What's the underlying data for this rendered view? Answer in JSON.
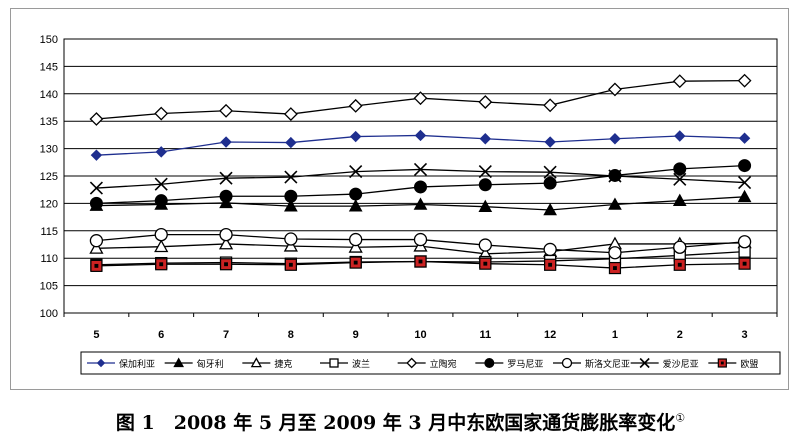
{
  "caption": {
    "text": "图 1　2008 年 5 月至 2009 年 3 月中东欧国家通货膨胀率变化",
    "footnote_mark": "①"
  },
  "chart_data": {
    "type": "line",
    "title": "",
    "xlabel": "",
    "ylabel": "",
    "categories": [
      "5",
      "6",
      "7",
      "8",
      "9",
      "10",
      "11",
      "12",
      "1",
      "2",
      "3"
    ],
    "ylim": [
      100,
      150
    ],
    "yticks": [
      100,
      105,
      110,
      115,
      120,
      125,
      130,
      135,
      140,
      145,
      150
    ],
    "grid": "horizontal",
    "legend_position": "bottom",
    "series": [
      {
        "name": "保加利亚",
        "color": "#1f2f8f",
        "marker": "diamond-filled",
        "values": [
          128.8,
          129.4,
          131.2,
          131.1,
          132.2,
          132.4,
          131.8,
          131.2,
          131.8,
          132.3,
          131.9
        ]
      },
      {
        "name": "匈牙利",
        "color": "#000000",
        "marker": "triangle-filled",
        "values": [
          119.6,
          119.8,
          120.1,
          119.5,
          119.5,
          119.8,
          119.4,
          118.8,
          119.8,
          120.5,
          121.2
        ]
      },
      {
        "name": "捷克",
        "color": "#000000",
        "marker": "triangle-open",
        "values": [
          111.8,
          112.1,
          112.6,
          112.2,
          112.0,
          112.2,
          110.8,
          111.2,
          112.6,
          112.6,
          112.8
        ]
      },
      {
        "name": "波兰",
        "color": "#000000",
        "marker": "square-open",
        "values": [
          108.8,
          109.1,
          109.2,
          109.0,
          109.3,
          109.4,
          109.3,
          109.5,
          109.9,
          110.5,
          111.2
        ]
      },
      {
        "name": "立陶宛",
        "color": "#000000",
        "marker": "diamond-open",
        "values": [
          135.4,
          136.4,
          136.9,
          136.3,
          137.8,
          139.2,
          138.5,
          137.9,
          140.8,
          142.3,
          142.4
        ]
      },
      {
        "name": "罗马尼亚",
        "color": "#000000",
        "marker": "circle-filled",
        "values": [
          120.0,
          120.5,
          121.3,
          121.3,
          121.7,
          123.0,
          123.4,
          123.7,
          125.1,
          126.3,
          126.9
        ]
      },
      {
        "name": "斯洛文尼亚",
        "color": "#000000",
        "marker": "circle-open",
        "values": [
          113.2,
          114.3,
          114.3,
          113.5,
          113.4,
          113.4,
          112.4,
          111.6,
          111.0,
          112.0,
          113.0
        ]
      },
      {
        "name": "爱沙尼亚",
        "color": "#000000",
        "marker": "x",
        "values": [
          122.8,
          123.5,
          124.6,
          124.8,
          125.8,
          126.2,
          125.8,
          125.7,
          125.0,
          124.4,
          123.8
        ]
      },
      {
        "name": "欧盟",
        "color": "#cc2222",
        "marker": "square-filled-red",
        "values": [
          108.6,
          108.9,
          108.9,
          108.8,
          109.2,
          109.4,
          109.0,
          108.8,
          108.2,
          108.8,
          109.0
        ]
      }
    ]
  }
}
